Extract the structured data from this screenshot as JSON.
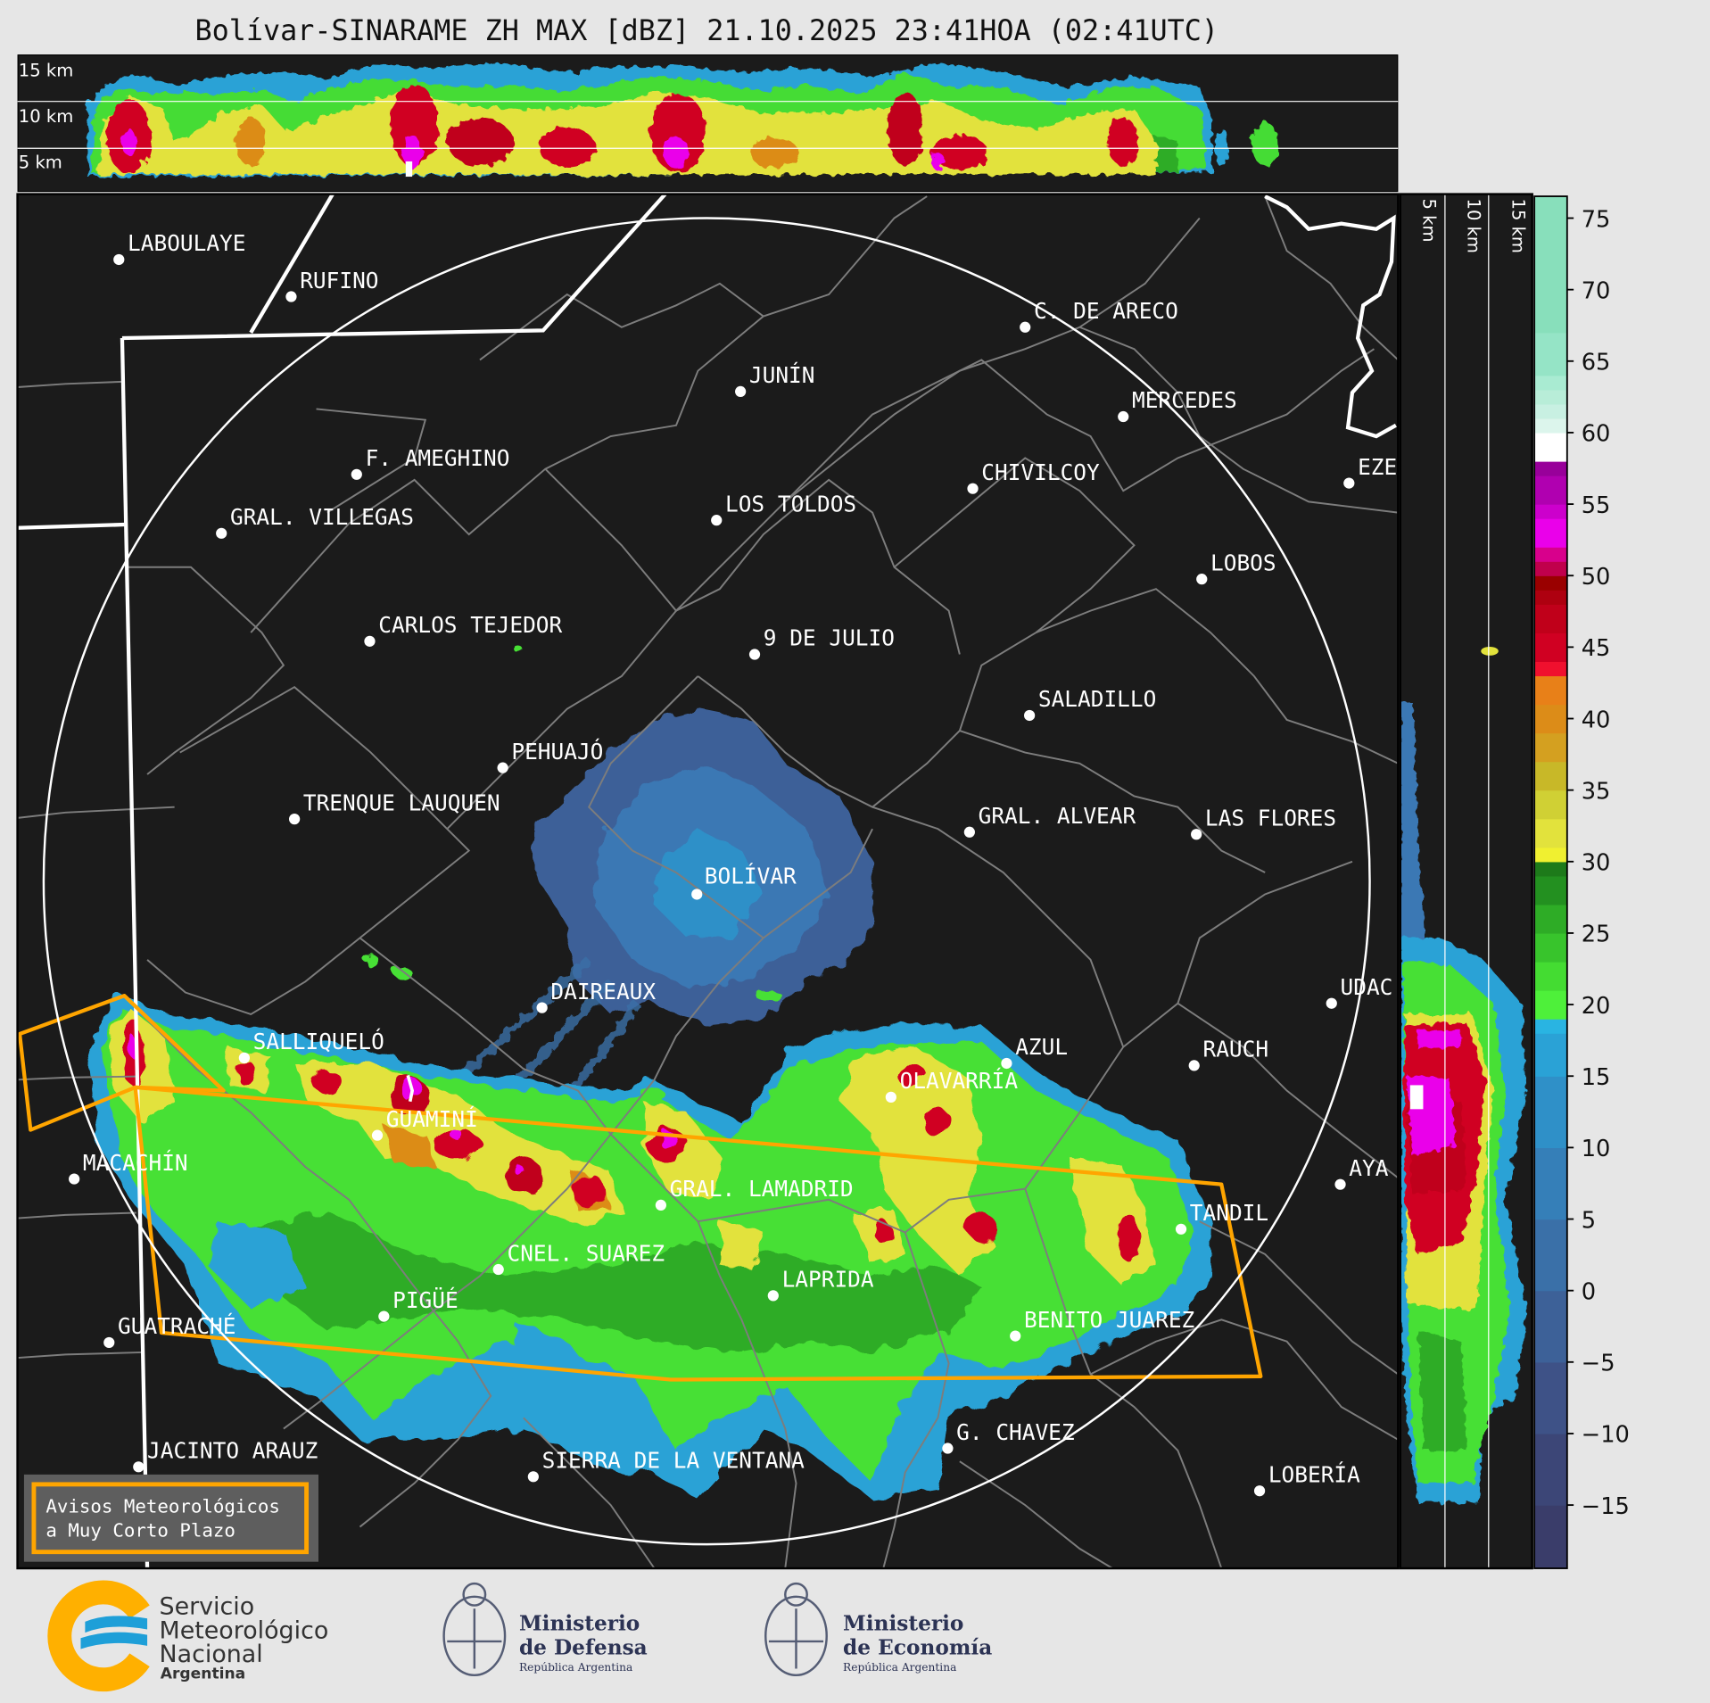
{
  "title": "Bolívar-SINARAME ZH MAX [dBZ] 21.10.2025 23:41HOA (02:41UTC)",
  "top_section": {
    "labels": [
      "15 km",
      "10 km",
      "5 km"
    ]
  },
  "right_section": {
    "labels": [
      "5 km",
      "10 km",
      "15 km"
    ]
  },
  "radar_site": "BOLÍVAR",
  "cities": [
    "LABOULAYE",
    "RUFINO",
    "C. DE ARECO",
    "JUNÍN",
    "MERCEDES",
    "F. AMEGHINO",
    "CHIVILCOY",
    "EZE",
    "LOS TOLDOS",
    "GRAL. VILLEGAS",
    "LOBOS",
    "CARLOS TEJEDOR",
    "9 DE JULIO",
    "SALADILLO",
    "PEHUAJÓ",
    "TRENQUE LAUQUEN",
    "GRAL. ALVEAR",
    "LAS FLORES",
    "DAIREAUX",
    "UDAC",
    "AZUL",
    "RAUCH",
    "SALLIQUELÓ",
    "OLAVARRÍA",
    "GUAMINÍ",
    "MACACHÍN",
    "AYA",
    "TANDIL",
    "GRAL. LAMADRID",
    "CNEL. SUAREZ",
    "LAPRIDA",
    "PIGÜÉ",
    "GUATRACHÉ",
    "BENITO JUAREZ",
    "G. CHAVEZ",
    "JACINTO ARAUZ",
    "SIERRA DE LA VENTANA",
    "LOBERÍA"
  ],
  "legend": {
    "line1": "Avisos Meteorológicos",
    "line2": "a Muy Corto Plazo",
    "border_color": "#ffa500"
  },
  "colorbar": {
    "unit": "dBZ",
    "range": [
      -20,
      77
    ],
    "ticks": [
      "75",
      "70",
      "65",
      "60",
      "55",
      "50",
      "45",
      "40",
      "35",
      "30",
      "25",
      "20",
      "15",
      "10",
      "5",
      "0",
      "−5",
      "−10",
      "−15"
    ],
    "bands": [
      [
        -20,
        -15,
        "#3a3d6a"
      ],
      [
        -15,
        -10,
        "#3c4677"
      ],
      [
        -10,
        -5,
        "#3e5287"
      ],
      [
        -5,
        0,
        "#3d6198"
      ],
      [
        0,
        5,
        "#3a70a8"
      ],
      [
        5,
        10,
        "#357fb8"
      ],
      [
        10,
        15,
        "#2f90c8"
      ],
      [
        15,
        18,
        "#2aa2d6"
      ],
      [
        18,
        19,
        "#29b4e2"
      ],
      [
        19,
        21,
        "#4ef03a"
      ],
      [
        21,
        23,
        "#44dc32"
      ],
      [
        23,
        25,
        "#38c42c"
      ],
      [
        25,
        27,
        "#2eac26"
      ],
      [
        27,
        29,
        "#239020"
      ],
      [
        29,
        30,
        "#1d7a1a"
      ],
      [
        30,
        31,
        "#f0f030"
      ],
      [
        31,
        33,
        "#e2e23c"
      ],
      [
        33,
        35,
        "#d0d034"
      ],
      [
        35,
        37,
        "#c8b828"
      ],
      [
        37,
        39,
        "#d4a020"
      ],
      [
        39,
        41,
        "#dc8c18"
      ],
      [
        41,
        43,
        "#e88018"
      ],
      [
        43,
        44,
        "#f0102e"
      ],
      [
        44,
        46,
        "#d00022"
      ],
      [
        46,
        48,
        "#c0001a"
      ],
      [
        48,
        49,
        "#ae0010"
      ],
      [
        49,
        50,
        "#9a0000"
      ],
      [
        50,
        51,
        "#c0004c"
      ],
      [
        51,
        52,
        "#d8008c"
      ],
      [
        52,
        54,
        "#ea00ea"
      ],
      [
        54,
        55,
        "#cc00cc"
      ],
      [
        55,
        57,
        "#b000b0"
      ],
      [
        57,
        58,
        "#98009a"
      ],
      [
        58,
        60,
        "#ffffff"
      ],
      [
        60,
        61,
        "#dcf5ec"
      ],
      [
        61,
        62,
        "#c8f0e2"
      ],
      [
        62,
        63,
        "#b8edd8"
      ],
      [
        63,
        64,
        "#a9ebd2"
      ],
      [
        64,
        67,
        "#95e4c6"
      ],
      [
        67,
        77,
        "#88dfbb"
      ]
    ]
  },
  "footer": {
    "smn": {
      "line1": "Servicio",
      "line2": "Meteorológico",
      "line3": "Nacional",
      "line4": "Argentina"
    },
    "defensa": {
      "line1": "Ministerio",
      "line2": "de Defensa",
      "line3": "República Argentina"
    },
    "economia": {
      "line1": "Ministerio",
      "line2": "de Economía",
      "line3": "República Argentina"
    }
  },
  "colors": {
    "background": "#e6e6e6",
    "map": "#1b1b1b",
    "warning": "#ffa500",
    "range_ring": "#ffffff",
    "county": "#7d7d7d"
  }
}
